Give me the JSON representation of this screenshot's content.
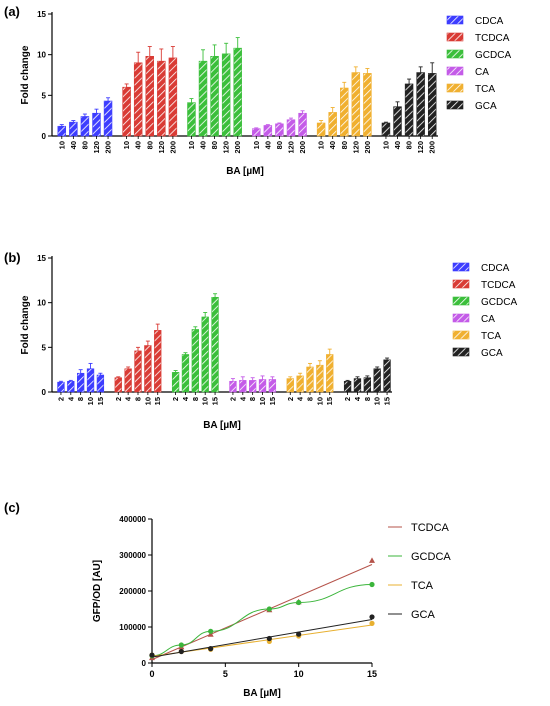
{
  "chart_data": [
    {
      "type": "bar",
      "panel_label": "(a)",
      "xlabel": "BA [µM]",
      "ylabel": "Fold change",
      "ylim": [
        0,
        15
      ],
      "yticks": [
        "0",
        "5",
        "10",
        "15"
      ],
      "categories": [
        "10",
        "40",
        "80",
        "120",
        "200"
      ],
      "legend_position": "right",
      "pattern": "hatched",
      "series": [
        {
          "name": "CDCA",
          "color": "#3d3dff",
          "values": [
            1.2,
            1.7,
            2.4,
            2.8,
            4.3
          ],
          "errors": [
            0.2,
            0.2,
            0.3,
            0.5,
            0.4
          ]
        },
        {
          "name": "TCDCA",
          "color": "#d93b35",
          "values": [
            6.0,
            9.0,
            9.8,
            9.2,
            9.6
          ],
          "errors": [
            0.4,
            1.3,
            1.2,
            1.5,
            1.4
          ]
        },
        {
          "name": "GCDCA",
          "color": "#3bbf3b",
          "values": [
            4.1,
            9.2,
            9.8,
            10.1,
            10.8
          ],
          "errors": [
            0.5,
            1.4,
            1.4,
            1.3,
            1.3
          ]
        },
        {
          "name": "CA",
          "color": "#c45be8",
          "values": [
            0.9,
            1.3,
            1.5,
            2.0,
            2.8
          ],
          "errors": [
            0.1,
            0.1,
            0.1,
            0.2,
            0.3
          ]
        },
        {
          "name": "TCA",
          "color": "#f0b030",
          "values": [
            1.6,
            2.9,
            5.9,
            7.8,
            7.7
          ],
          "errors": [
            0.3,
            0.6,
            0.7,
            0.7,
            0.6
          ]
        },
        {
          "name": "GCA",
          "color": "#222222",
          "values": [
            1.6,
            3.6,
            6.4,
            7.8,
            7.7
          ],
          "errors": [
            0.1,
            0.6,
            0.6,
            0.7,
            1.3
          ]
        }
      ]
    },
    {
      "type": "bar",
      "panel_label": "(b)",
      "xlabel": "BA [µM]",
      "ylabel": "Fold change",
      "ylim": [
        0,
        15
      ],
      "yticks": [
        "0",
        "5",
        "10",
        "15"
      ],
      "categories": [
        "2",
        "4",
        "8",
        "10",
        "15"
      ],
      "legend_position": "right",
      "pattern": "hatched",
      "series": [
        {
          "name": "CDCA",
          "color": "#3d3dff",
          "values": [
            1.1,
            1.2,
            2.1,
            2.6,
            1.9
          ],
          "errors": [
            0.1,
            0.1,
            0.4,
            0.6,
            0.2
          ]
        },
        {
          "name": "TCDCA",
          "color": "#d93b35",
          "values": [
            1.6,
            2.6,
            4.6,
            5.2,
            6.9
          ],
          "errors": [
            0.1,
            0.2,
            0.4,
            0.5,
            0.7
          ]
        },
        {
          "name": "GCDCA",
          "color": "#3bbf3b",
          "values": [
            2.2,
            4.2,
            7.0,
            8.4,
            10.6
          ],
          "errors": [
            0.2,
            0.2,
            0.3,
            0.5,
            0.4
          ]
        },
        {
          "name": "CA",
          "color": "#c45be8",
          "values": [
            1.2,
            1.3,
            1.3,
            1.4,
            1.4
          ],
          "errors": [
            0.3,
            0.4,
            0.3,
            0.4,
            0.3
          ]
        },
        {
          "name": "TCA",
          "color": "#f0b030",
          "values": [
            1.5,
            1.8,
            2.8,
            3.0,
            4.2
          ],
          "errors": [
            0.2,
            0.3,
            0.4,
            0.5,
            0.6
          ]
        },
        {
          "name": "GCA",
          "color": "#222222",
          "values": [
            1.2,
            1.5,
            1.6,
            2.6,
            3.6
          ],
          "errors": [
            0.1,
            0.2,
            0.2,
            0.2,
            0.2
          ]
        }
      ]
    },
    {
      "type": "line",
      "panel_label": "(c)",
      "xlabel": "BA [µM]",
      "ylabel": "GFP/OD [AU]",
      "xlim": [
        0,
        15
      ],
      "ylim": [
        0,
        400000
      ],
      "xticks": [
        "0",
        "5",
        "10",
        "15"
      ],
      "yticks": [
        "0",
        "100000",
        "200000",
        "300000",
        "400000"
      ],
      "legend_position": "top-right",
      "x": [
        0,
        2,
        4,
        8,
        10,
        15
      ],
      "series": [
        {
          "name": "TCDCA",
          "color": "#b5534a",
          "marker": "triangle",
          "fit": "linear",
          "values": [
            15000,
            45000,
            80000,
            148000,
            170000,
            285000
          ]
        },
        {
          "name": "GCDCA",
          "color": "#3bb53b",
          "marker": "circle",
          "fit": "curve",
          "values": [
            20000,
            50000,
            88000,
            150000,
            168000,
            218000
          ]
        },
        {
          "name": "TCA",
          "color": "#e8b030",
          "marker": "circle",
          "fit": "linear",
          "values": [
            22000,
            32000,
            38000,
            60000,
            75000,
            110000
          ]
        },
        {
          "name": "GCA",
          "color": "#222222",
          "marker": "circle",
          "fit": "linear",
          "values": [
            22000,
            32000,
            40000,
            68000,
            80000,
            128000
          ]
        }
      ]
    }
  ]
}
